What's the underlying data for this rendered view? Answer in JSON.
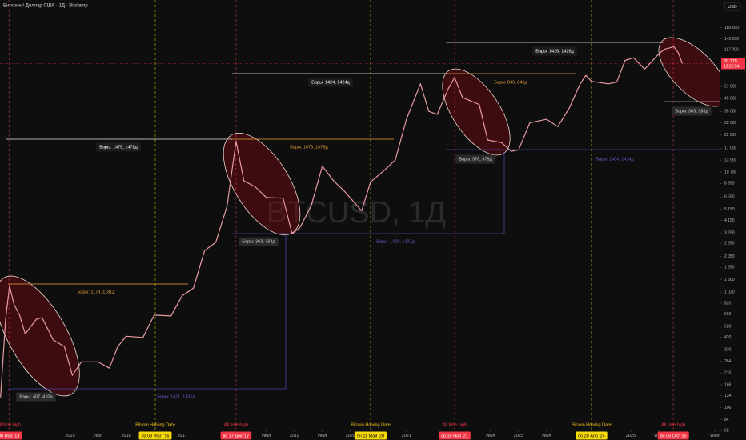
{
  "chart_data": {
    "type": "line",
    "title": "Биткоин / Доллар США · 1Д · Bitstamp",
    "currency": "USD",
    "watermark": "BTCUSD, 1Д",
    "log_scale": true,
    "xlim": [
      2013.75,
      2026.6
    ],
    "ylim": [
      66,
      300000
    ],
    "x": [
      2013.76,
      2013.85,
      2013.92,
      2014.0,
      2014.1,
      2014.2,
      2014.4,
      2014.5,
      2014.7,
      2014.9,
      2015.04,
      2015.2,
      2015.5,
      2015.7,
      2015.85,
      2016.0,
      2016.3,
      2016.5,
      2016.8,
      2017.0,
      2017.2,
      2017.4,
      2017.6,
      2017.8,
      2017.96,
      2018.1,
      2018.3,
      2018.5,
      2018.8,
      2018.96,
      2019.1,
      2019.3,
      2019.5,
      2019.7,
      2019.9,
      2020.2,
      2020.36,
      2020.6,
      2020.8,
      2021.0,
      2021.25,
      2021.4,
      2021.55,
      2021.75,
      2021.86,
      2022.0,
      2022.3,
      2022.45,
      2022.7,
      2022.87,
      2023.0,
      2023.2,
      2023.5,
      2023.7,
      2023.9,
      2024.1,
      2024.2,
      2024.3,
      2024.6,
      2024.75,
      2024.9,
      2025.05,
      2025.25,
      2025.5,
      2025.6,
      2025.77,
      2025.85,
      2025.92
    ],
    "series": [
      {
        "name": "BTCUSD",
        "color": "#e89aa2",
        "values": [
          130,
          600,
          1150,
          800,
          650,
          450,
          600,
          620,
          400,
          350,
          200,
          260,
          260,
          230,
          350,
          430,
          420,
          650,
          640,
          950,
          1100,
          2300,
          2700,
          5500,
          19500,
          9000,
          8000,
          6500,
          6400,
          3200,
          3600,
          5500,
          12000,
          9000,
          7300,
          5000,
          8800,
          11000,
          13500,
          30000,
          60000,
          35000,
          33000,
          55000,
          68000,
          46000,
          40000,
          20000,
          19000,
          16000,
          16500,
          28000,
          30000,
          26000,
          37000,
          60000,
          71000,
          63000,
          60000,
          62000,
          95000,
          100000,
          80000,
          108000,
          118000,
          124000,
          110000,
          89178
        ]
      }
    ],
    "last_price": {
      "value": 89178,
      "label": "89 178"
    },
    "countdown": "13:25:54",
    "yticks": [
      {
        "value": 180000,
        "label": "180 000"
      },
      {
        "value": 145000,
        "label": "145 000"
      },
      {
        "value": 117000,
        "label": "117 000"
      },
      {
        "value": 93000,
        "label": "93 000"
      },
      {
        "value": 57000,
        "label": "57 000"
      },
      {
        "value": 45000,
        "label": "45 000"
      },
      {
        "value": 35000,
        "label": "35 000"
      },
      {
        "value": 28000,
        "label": "28 000"
      },
      {
        "value": 22000,
        "label": "22 000"
      },
      {
        "value": 17000,
        "label": "17 000"
      },
      {
        "value": 13500,
        "label": "13 500"
      },
      {
        "value": 10700,
        "label": "10 700"
      },
      {
        "value": 8550,
        "label": "8 550"
      },
      {
        "value": 6550,
        "label": "6 550"
      },
      {
        "value": 5150,
        "label": "5 150"
      },
      {
        "value": 4150,
        "label": "4 150"
      },
      {
        "value": 3250,
        "label": "3 250"
      },
      {
        "value": 2650,
        "label": "2 650"
      },
      {
        "value": 2050,
        "label": "2 050"
      },
      {
        "value": 1650,
        "label": "1 650"
      },
      {
        "value": 1300,
        "label": "1 300"
      },
      {
        "value": 1020,
        "label": "1 020"
      },
      820,
      660,
      520,
      420,
      330,
      264,
      210,
      166,
      134,
      106,
      84,
      68
    ],
    "xticks": [
      2015,
      {
        "value": 2015.5,
        "label": "Июл"
      },
      2016,
      2017,
      {
        "value": 2018.5,
        "label": "Июл"
      },
      2019,
      {
        "value": 2019.5,
        "label": "Июл"
      },
      2020,
      2021,
      {
        "value": 2022.5,
        "label": "Июл"
      },
      2023,
      {
        "value": 2023.5,
        "label": "Июл"
      },
      2025,
      {
        "value": 2025.5,
        "label": "Июл"
      },
      {
        "value": 2026.5,
        "label": "Июл"
      }
    ],
    "events": [
      {
        "value": 2013.91,
        "label": "30 Ноя '13",
        "caption": "All time high",
        "color": "#f23645"
      },
      {
        "value": 2016.52,
        "label": "сб 09 Июл '16",
        "caption": "Bitcoin Halving Date",
        "color": "#f5d90a"
      },
      {
        "value": 2017.96,
        "label": "вс 17 Дек '17",
        "caption": "All time high",
        "color": "#f23645"
      },
      {
        "value": 2020.36,
        "label": "пн 11 Май '20",
        "caption": "Bitcoin Halving Date",
        "color": "#f5d90a"
      },
      {
        "value": 2021.86,
        "label": "ср 10 Ноя '21",
        "caption": "All time high",
        "color": "#f23645"
      },
      {
        "value": 2024.3,
        "label": "сб 20 Апр '24",
        "caption": "Bitcoin Halving Date",
        "color": "#f5d90a"
      },
      {
        "value": 2025.76,
        "label": "пн 06 Окт '25",
        "caption": "All time high",
        "color": "#f23645"
      }
    ],
    "annotations": [
      "Бары: 407, 410д",
      "Бары: 1421, 1431д",
      "Бары: 1178, 1181д",
      "Бары: 1475, 1478д",
      "Бары: 363, 363д",
      "Бары: 1079, 1079д",
      "Бары: 1431, 1437д",
      "Бары: 1424, 1424д",
      "Бары: 376, 376д",
      "Бары: 846, 846д",
      "Бары: 1404, 1414д",
      "Бары: 1426, 1426д",
      "Бары: 383, 383д"
    ]
  }
}
